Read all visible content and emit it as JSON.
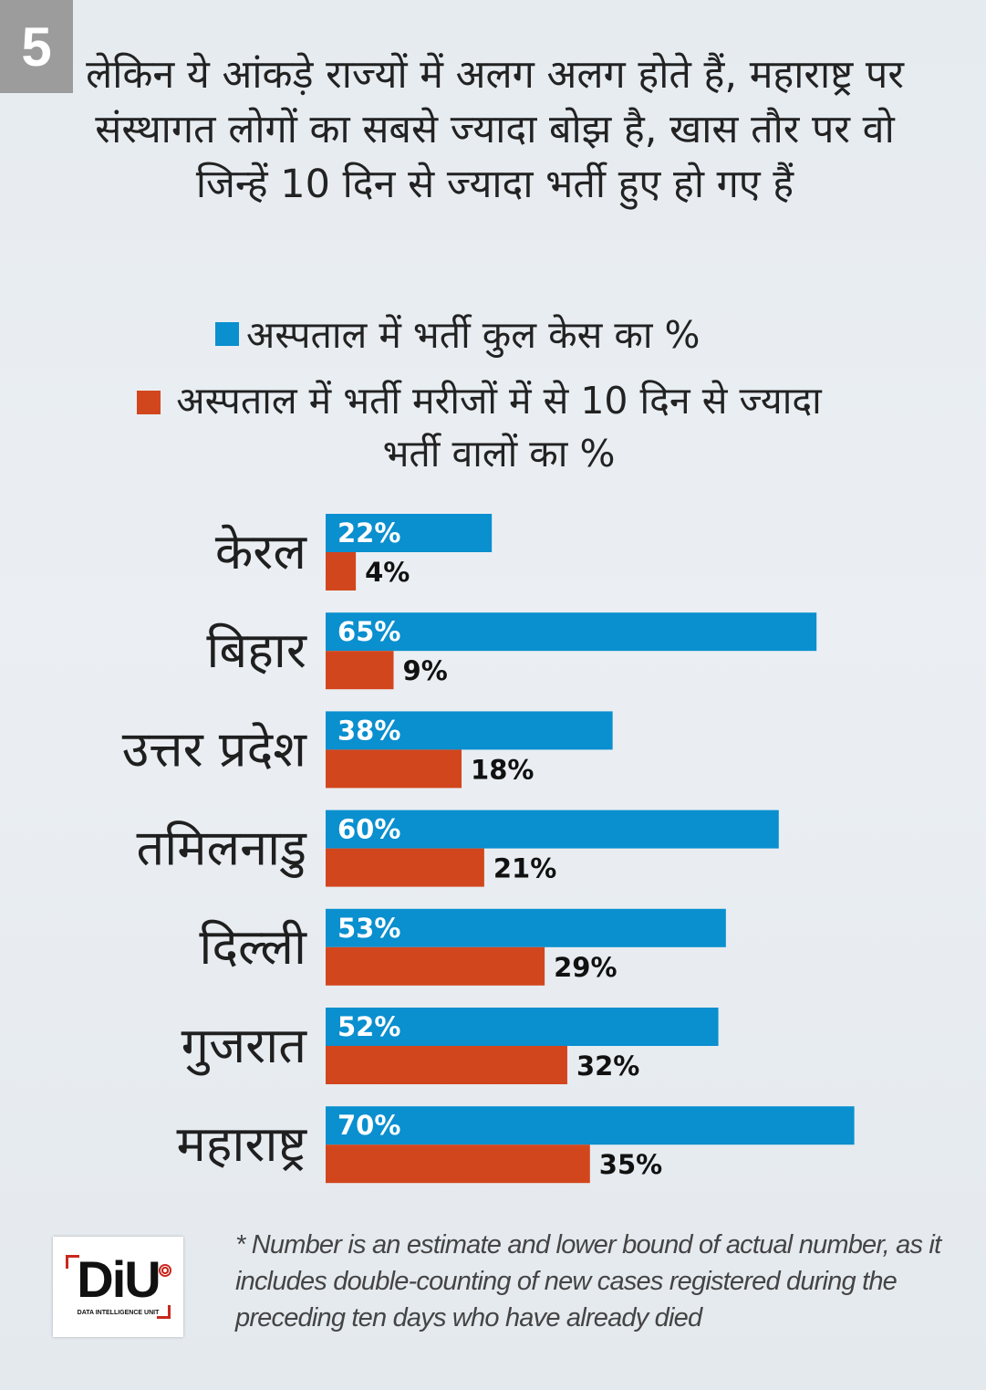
{
  "badge": "5",
  "headline": "लेकिन ये आंकड़े राज्यों में अलग अलग होते हैं, महाराष्ट्र पर संस्थागत लोगों का सबसे ज्यादा बोझ है, खास तौर पर वो जिन्हें 10 दिन से ज्यादा भर्ती हुए हो गए हैं",
  "legend": {
    "series1": "अस्पताल में भर्ती कुल केस का %",
    "series2": "अस्पताल में भर्ती मरीजों में से 10 दिन से ज्यादा भर्ती वालों का %"
  },
  "colors": {
    "blue": "#0a8fcf",
    "red": "#d2461d"
  },
  "chart_data": {
    "type": "bar",
    "orientation": "horizontal",
    "title": "",
    "categories": [
      "केरल",
      "बिहार",
      "उत्तर प्रदेश",
      "तमिलनाडु",
      "दिल्ली",
      "गुजरात",
      "महाराष्ट्र"
    ],
    "series": [
      {
        "name": "अस्पताल में भर्ती कुल केस का %",
        "values": [
          22,
          65,
          38,
          60,
          53,
          52,
          70
        ],
        "labels": [
          "22%",
          "65%",
          "38%",
          "60%",
          "53%",
          "52%",
          "70%"
        ]
      },
      {
        "name": "अस्पताल में भर्ती मरीजों में से 10 दिन से ज्यादा भर्ती वालों का %",
        "values": [
          4,
          9,
          18,
          21,
          29,
          32,
          35
        ],
        "labels": [
          "4%",
          "9%",
          "18%",
          "21%",
          "29%",
          "32%",
          "35%"
        ]
      }
    ],
    "xlim": [
      0,
      70
    ],
    "xlabel": "",
    "ylabel": ""
  },
  "logo": {
    "text": "DiU",
    "subtitle": "DATA INTELLIGENCE UNIT"
  },
  "footnote": "* Number is an estimate and lower bound of actual number, as it includes double-counting of new cases registered during the preceding ten days who have already died"
}
